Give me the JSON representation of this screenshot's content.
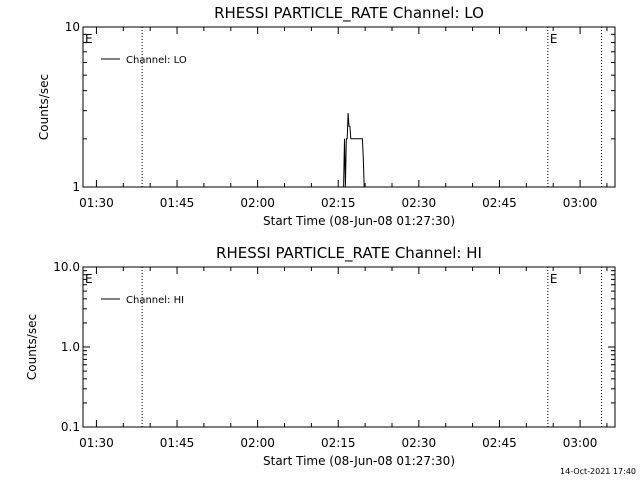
{
  "footer": {
    "timestamp": "14-Oct-2021 17:40"
  },
  "chart_data": [
    {
      "type": "line",
      "title": "RHESSI PARTICLE_RATE Channel: LO",
      "xlabel": "Start Time (08-Jun-08 01:27:30)",
      "ylabel": "Counts/sec",
      "y_scale": "log",
      "ylim": [
        1,
        10
      ],
      "y_ticks": [
        1,
        10
      ],
      "y_tick_labels": [
        "1",
        "10"
      ],
      "x_range": [
        "01:27:30",
        "03:06:30"
      ],
      "x_ticks": [
        "01:30",
        "01:45",
        "02:00",
        "02:15",
        "02:30",
        "02:45",
        "03:00"
      ],
      "grid": false,
      "legend_position": "top-left",
      "event_markers": [
        {
          "time": "01:27:30",
          "label": "E",
          "line": false
        },
        {
          "time": "01:38:30",
          "label": "",
          "line": true
        },
        {
          "time": "02:54:00",
          "label": "E",
          "line": true
        },
        {
          "time": "03:04:00",
          "label": "",
          "line": true
        }
      ],
      "series": [
        {
          "name": "Channel: LO",
          "color": "#000000",
          "times": [
            "02:16:00",
            "02:16:05",
            "02:16:10",
            "02:16:20",
            "02:16:30",
            "02:16:40",
            "02:16:50",
            "02:17:00",
            "02:17:10",
            "02:17:20",
            "02:17:30",
            "02:17:40",
            "02:17:50",
            "02:18:00",
            "02:18:30",
            "02:19:00",
            "02:19:30",
            "02:19:40",
            "02:19:45",
            "02:19:50"
          ],
          "values": [
            1,
            1.5,
            2,
            1,
            2,
            2,
            2.9,
            2.4,
            2.4,
            2,
            2,
            2,
            2,
            2,
            2,
            2,
            2,
            1.5,
            1.2,
            1
          ]
        }
      ]
    },
    {
      "type": "line",
      "title": "RHESSI PARTICLE_RATE Channel: HI",
      "xlabel": "Start Time (08-Jun-08 01:27:30)",
      "ylabel": "Counts/sec",
      "y_scale": "log",
      "ylim": [
        0.1,
        10
      ],
      "y_ticks": [
        0.1,
        1,
        10
      ],
      "y_tick_labels": [
        "0.1",
        "1.0",
        "10.0"
      ],
      "x_range": [
        "01:27:30",
        "03:06:30"
      ],
      "x_ticks": [
        "01:30",
        "01:45",
        "02:00",
        "02:15",
        "02:30",
        "02:45",
        "03:00"
      ],
      "grid": false,
      "legend_position": "top-left",
      "event_markers": [
        {
          "time": "01:27:30",
          "label": "E",
          "line": false
        },
        {
          "time": "01:38:30",
          "label": "",
          "line": true
        },
        {
          "time": "02:54:00",
          "label": "E",
          "line": true
        },
        {
          "time": "03:04:00",
          "label": "",
          "line": true
        }
      ],
      "series": [
        {
          "name": "Channel: HI",
          "color": "#000000",
          "times": [],
          "values": []
        }
      ]
    }
  ]
}
